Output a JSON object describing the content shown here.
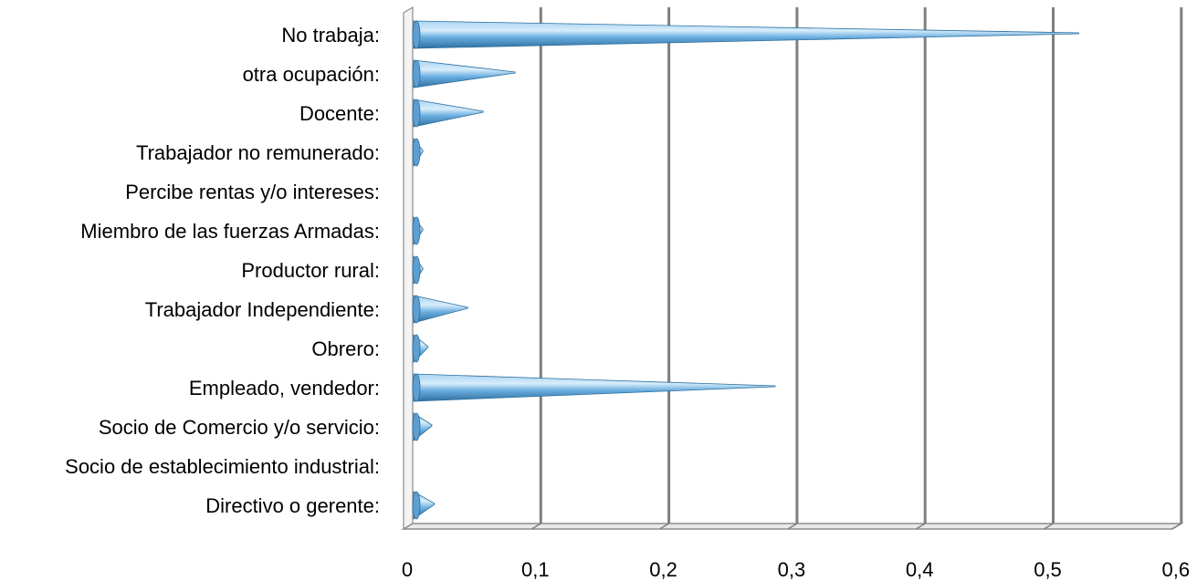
{
  "chart_data": {
    "type": "bar",
    "orientation": "horizontal",
    "style": "3d-cone",
    "title": "",
    "xlabel": "",
    "ylabel": "",
    "xlim": [
      0,
      0.6
    ],
    "x_ticks": [
      0,
      0.1,
      0.2,
      0.3,
      0.4,
      0.5,
      0.6
    ],
    "x_tick_labels": [
      "0",
      "0,1",
      "0,2",
      "0,3",
      "0,4",
      "0,5",
      "0,6"
    ],
    "grid": "vertical",
    "legend": "none",
    "categories": [
      "No trabaja:",
      "otra ocupación:",
      "Docente:",
      "Trabajador no remunerado:",
      "Percibe rentas y/o intereses:",
      "Miembro de las fuerzas Armadas:",
      "Productor rural:",
      "Trabajador Independiente:",
      "Obrero:",
      "Empleado, vendedor:",
      "Socio de Comercio y/o servicio:",
      "Socio de establecimiento industrial:",
      "Directivo o gerente:"
    ],
    "values": [
      0.52,
      0.08,
      0.055,
      0.008,
      0,
      0.008,
      0.008,
      0.043,
      0.012,
      0.283,
      0.015,
      0,
      0.017
    ],
    "colors": {
      "bar_light": "#a9d4f2",
      "bar_mid": "#6aaee0",
      "bar_dark": "#2e6f9e",
      "grid": "#7f7f7f",
      "floor": "#8c8c8c"
    }
  }
}
